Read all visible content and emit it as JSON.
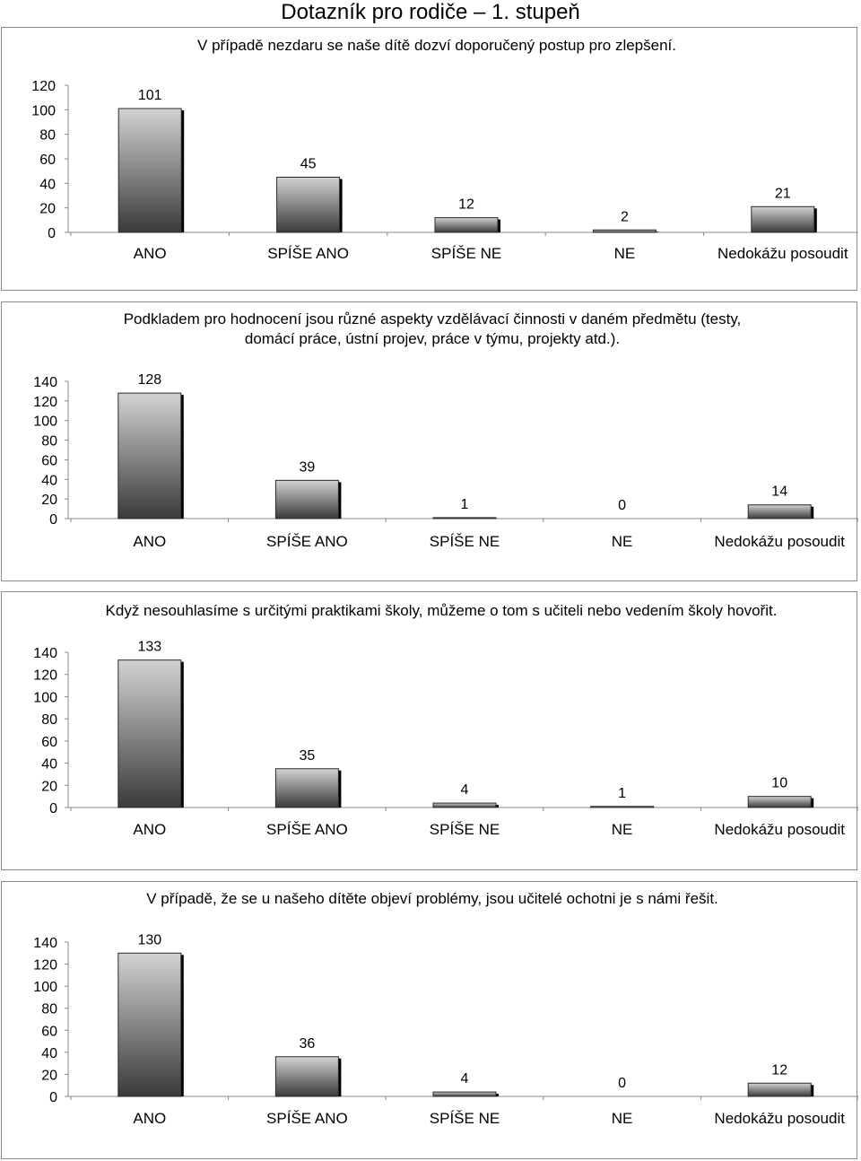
{
  "page_title": "Dotazník pro rodiče – 1. stupeň",
  "chart_data": [
    {
      "type": "bar",
      "title": "V případě nezdaru se naše dítě dozví doporučený postup pro zlepšení.",
      "categories": [
        "ANO",
        "SPÍŠE ANO",
        "SPÍŠE NE",
        "NE",
        "Nedokážu posoudit"
      ],
      "values": [
        101,
        45,
        12,
        2,
        21
      ],
      "ylim": [
        0,
        120
      ],
      "yticks": [
        "0",
        "20",
        "40",
        "60",
        "80",
        "100",
        "120"
      ],
      "xlabel": "",
      "ylabel": "",
      "legend": "none"
    },
    {
      "type": "bar",
      "title": "Podkladem pro hodnocení jsou různé aspekty vzdělávací činnosti v daném předmětu (testy, domácí práce, ústní projev, práce v týmu, projekty atd.).",
      "categories": [
        "ANO",
        "SPÍŠE ANO",
        "SPÍŠE NE",
        "NE",
        "Nedokážu posoudit"
      ],
      "values": [
        128,
        39,
        1,
        0,
        14
      ],
      "ylim": [
        0,
        140
      ],
      "yticks": [
        "0",
        "20",
        "40",
        "60",
        "80",
        "100",
        "120",
        "140"
      ],
      "xlabel": "",
      "ylabel": "",
      "legend": "none"
    },
    {
      "type": "bar",
      "title": "Když nesouhlasíme s určitými praktikami školy, můžeme o tom s učiteli nebo vedením školy hovořit.",
      "categories": [
        "ANO",
        "SPÍŠE ANO",
        "SPÍŠE NE",
        "NE",
        "Nedokážu posoudit"
      ],
      "values": [
        133,
        35,
        4,
        1,
        10
      ],
      "ylim": [
        0,
        140
      ],
      "yticks": [
        "0",
        "20",
        "40",
        "60",
        "80",
        "100",
        "120",
        "140"
      ],
      "xlabel": "",
      "ylabel": "",
      "legend": "none"
    },
    {
      "type": "bar",
      "title": "V případě, že se u našeho dítěte objeví problémy, jsou učitelé ochotni je s námi řešit.",
      "categories": [
        "ANO",
        "SPÍŠE ANO",
        "SPÍŠE NE",
        "NE",
        "Nedokážu posoudit"
      ],
      "values": [
        130,
        36,
        4,
        0,
        12
      ],
      "ylim": [
        0,
        140
      ],
      "yticks": [
        "0",
        "20",
        "40",
        "60",
        "80",
        "100",
        "120",
        "140"
      ],
      "xlabel": "",
      "ylabel": "",
      "legend": "none"
    }
  ],
  "colors": {
    "bar_top": "#d2d2d2",
    "bar_bottom": "#3a3a3a",
    "bar_shadow": "#000000",
    "axis": "#8a8a8a",
    "frame": "#8a8a8a"
  }
}
